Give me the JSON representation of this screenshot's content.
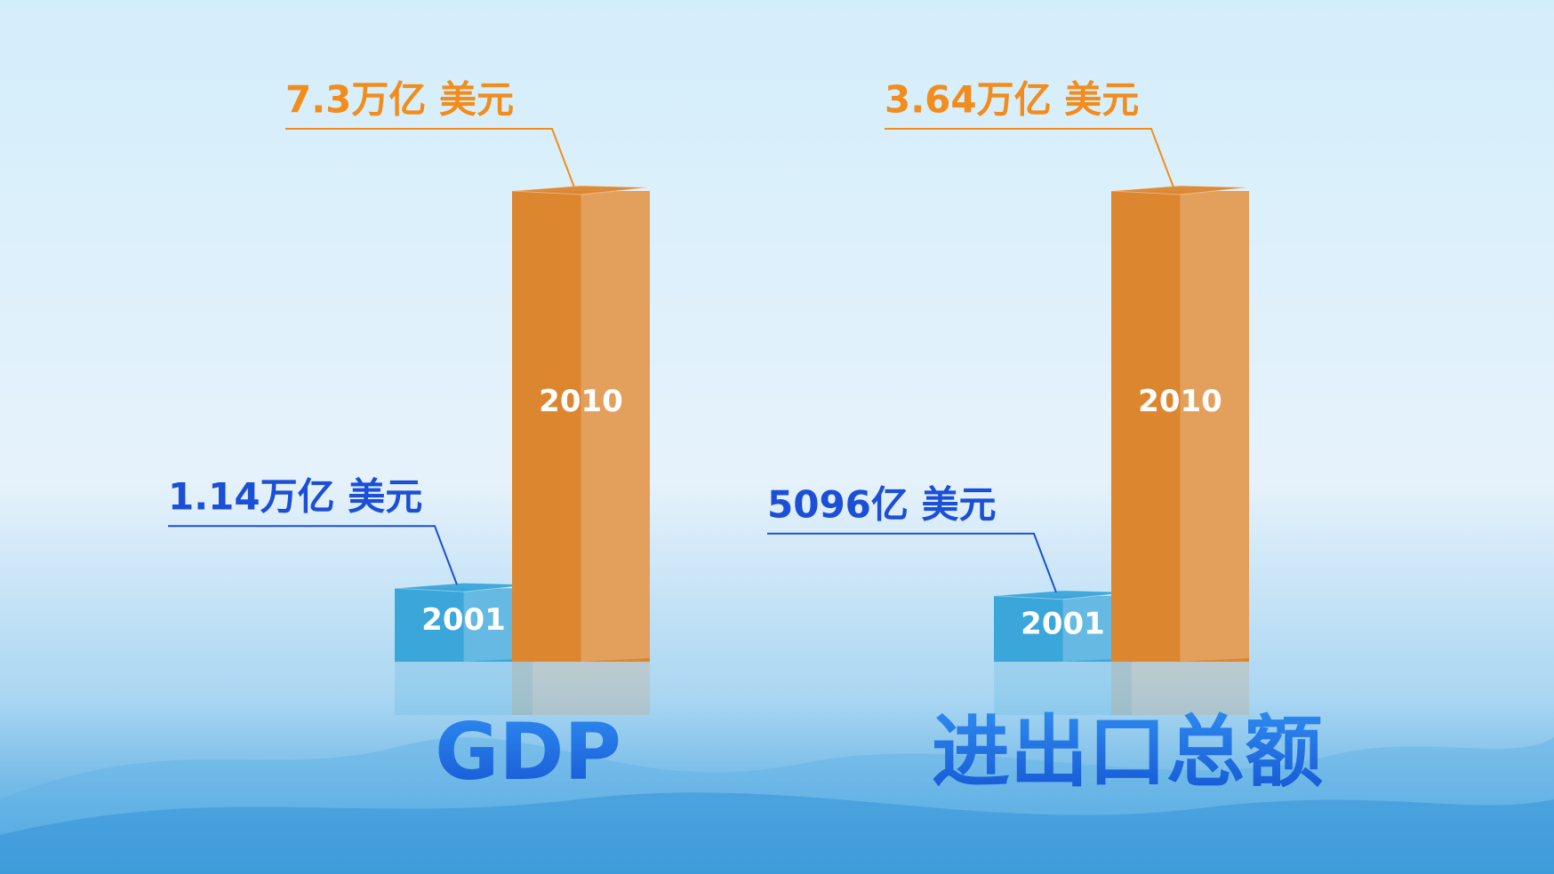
{
  "chart_data": [
    {
      "type": "bar",
      "title": "GDP",
      "categories": [
        "2001",
        "2010"
      ],
      "values": [
        11400,
        73000
      ],
      "value_labels": [
        "1.14万亿 美元",
        "7.3万亿 美元"
      ],
      "colors": [
        "#3aa6da",
        "#dc8630"
      ],
      "label_colors": [
        "#1b4fd6",
        "#f28c1c"
      ]
    },
    {
      "type": "bar",
      "title": "进出口总额",
      "categories": [
        "2001",
        "2010"
      ],
      "values": [
        5096,
        36400
      ],
      "value_labels": [
        "5096亿 美元",
        "3.64万亿 美元"
      ],
      "colors": [
        "#3aa6da",
        "#dc8630"
      ],
      "label_colors": [
        "#1b4fd6",
        "#f28c1c"
      ]
    }
  ]
}
